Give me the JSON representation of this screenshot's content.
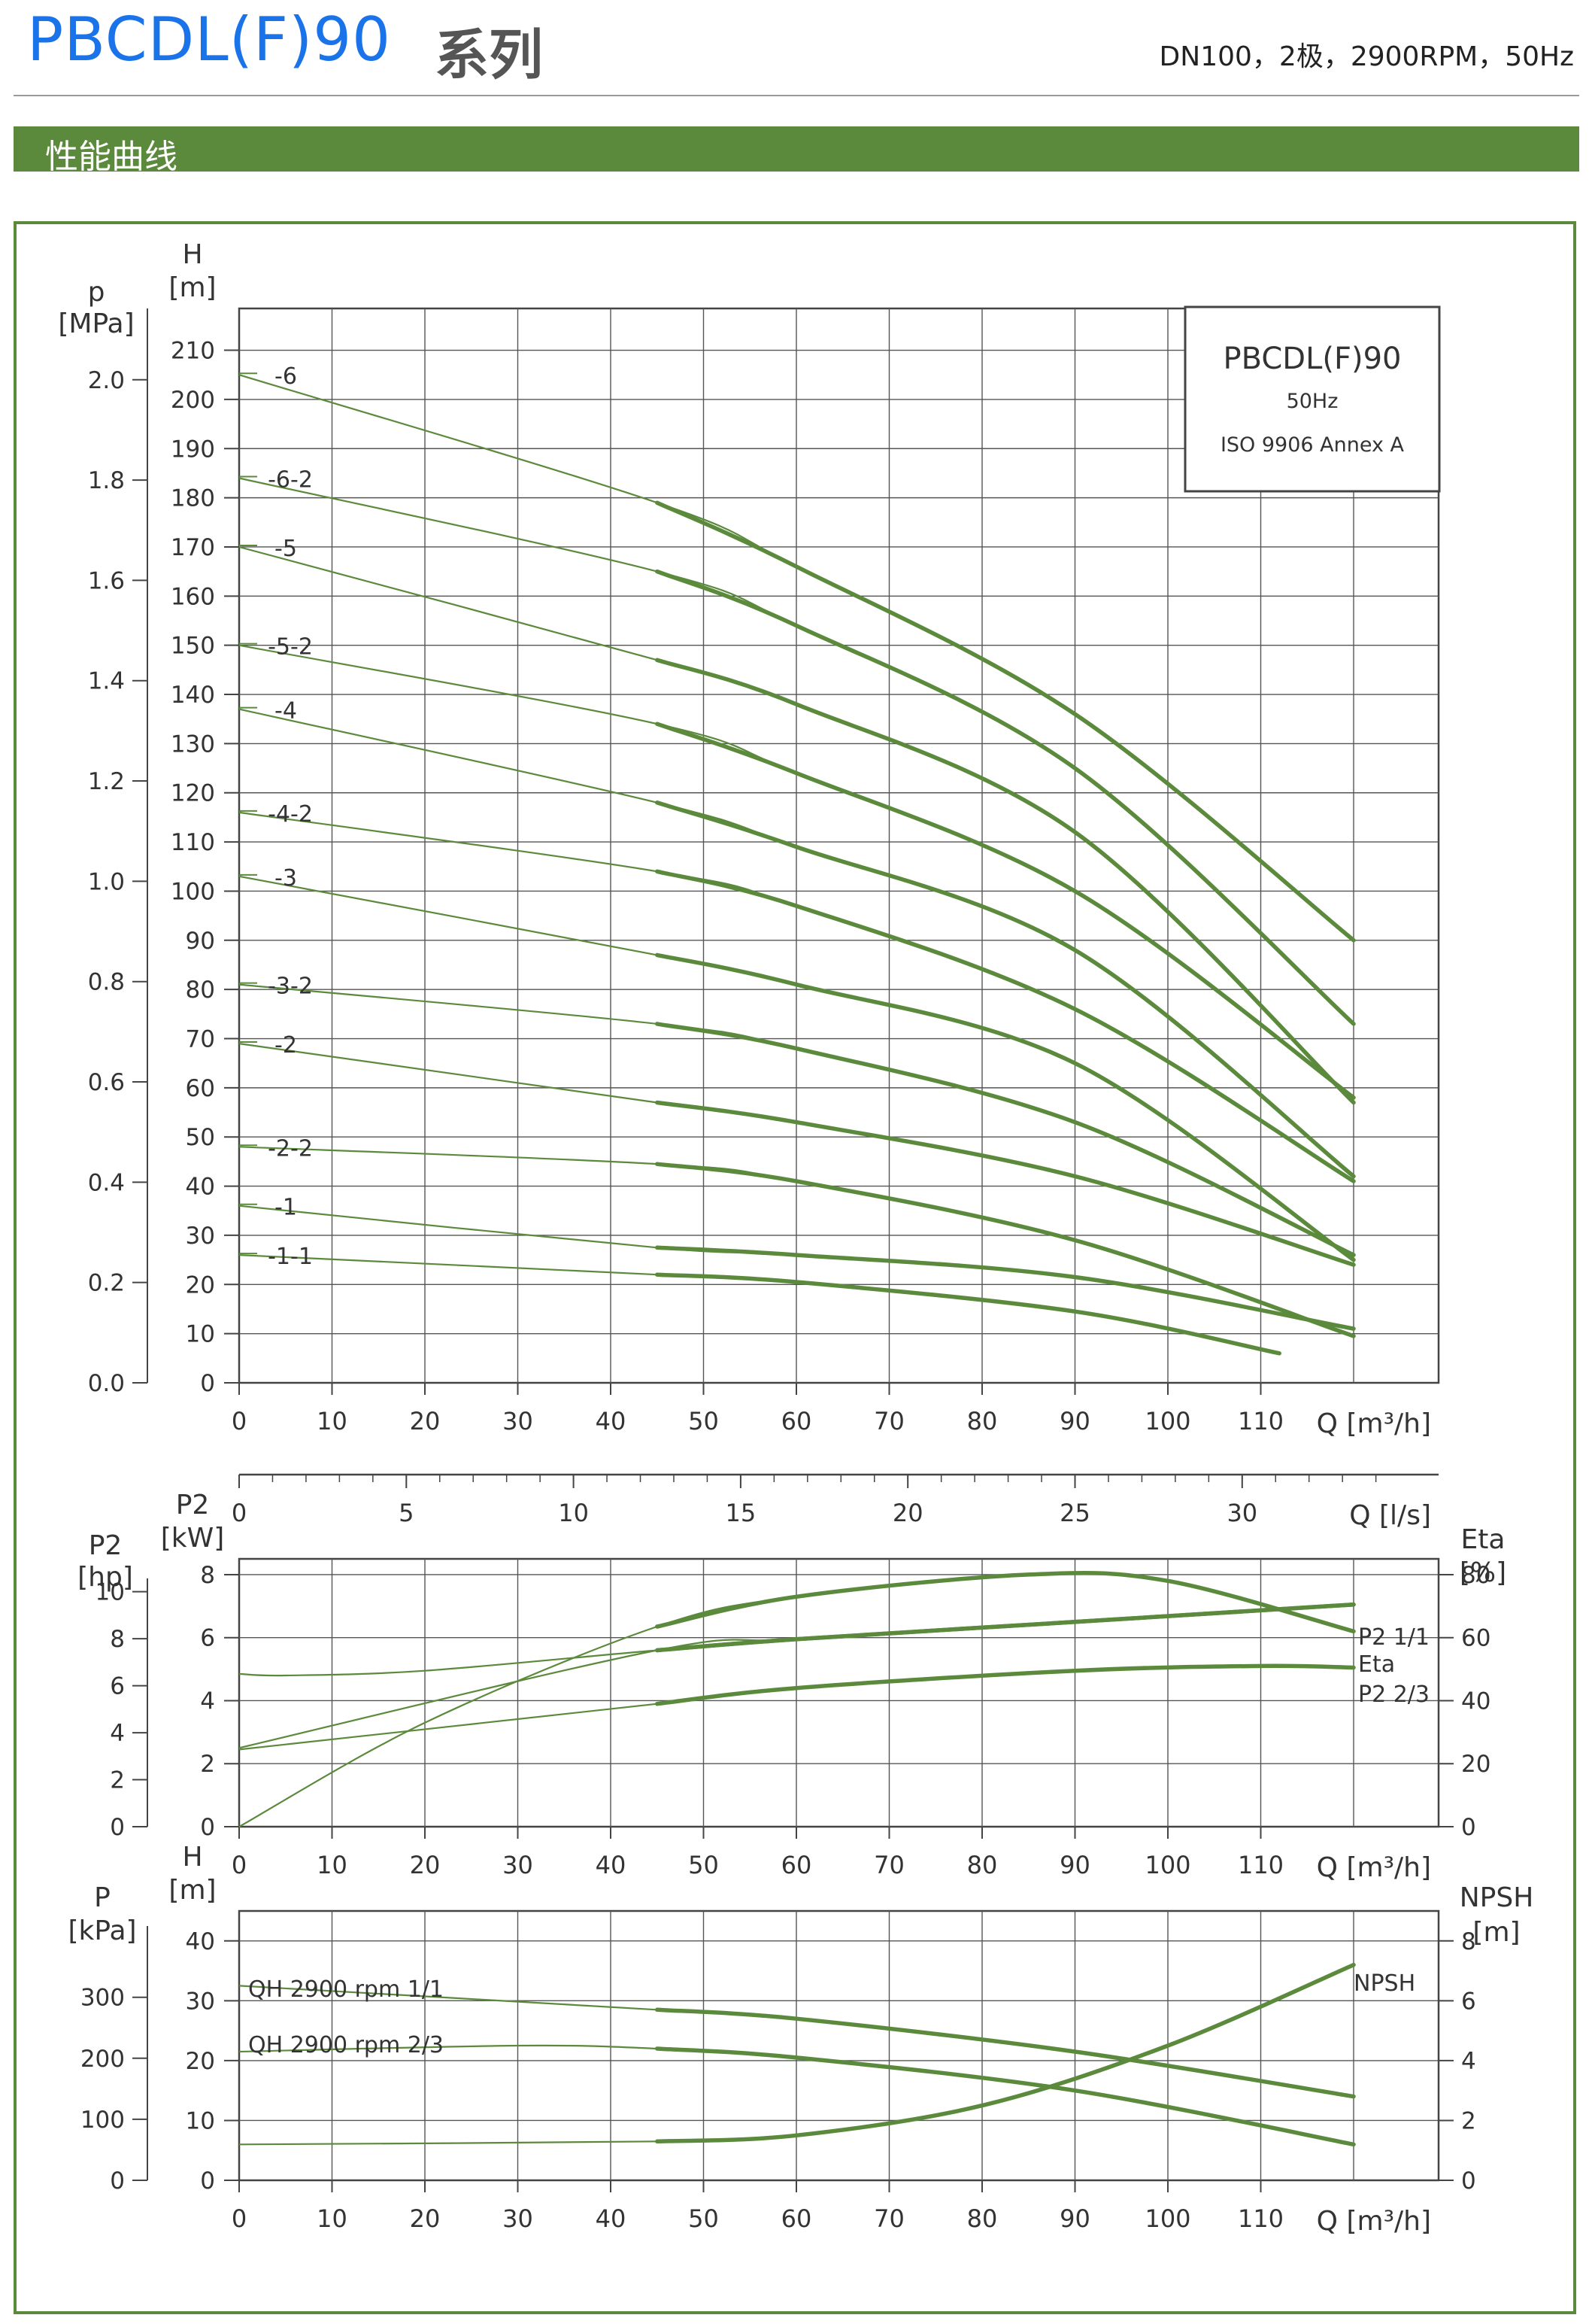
{
  "header": {
    "model": "PBCDL(F)90",
    "series": "系列",
    "spec": "DN100，2极，2900RPM，50Hz"
  },
  "section_title": "性能曲线",
  "colors": {
    "curve": "#5b8a3c",
    "accent": "#1a73e8",
    "grid": "#555555",
    "section": "#5b8a3c"
  },
  "legend_box": {
    "line1": "PBCDL(F)90",
    "line2": "50Hz",
    "line3": "ISO 9906 Annex A"
  },
  "chart_data": [
    {
      "type": "line",
      "xlabel": "Q [m³/h]",
      "xlim": [
        0,
        130
      ],
      "x_ticks": [
        0,
        10,
        20,
        30,
        40,
        50,
        60,
        70,
        80,
        90,
        100,
        110
      ],
      "ylabel": "H",
      "ylabel_unit": "[m]",
      "ylim": [
        0,
        210
      ],
      "y_ticks": [
        0,
        10,
        20,
        30,
        40,
        50,
        60,
        70,
        80,
        90,
        100,
        110,
        120,
        130,
        140,
        150,
        160,
        170,
        180,
        190,
        200,
        210
      ],
      "y2label": "p",
      "y2label_unit": "[MPa]",
      "y2_ticks": [
        "0.0",
        "0.2",
        "0.4",
        "0.6",
        "0.8",
        "1.0",
        "1.2",
        "1.4",
        "1.6",
        "1.8",
        "2.0"
      ],
      "grid": true,
      "secondary_axis": {
        "label": "Q [l/s]",
        "ticks": [
          0,
          5,
          10,
          15,
          20,
          25,
          30
        ]
      },
      "operating_range": [
        45,
        120
      ],
      "series": [
        {
          "name": "-6",
          "x": [
            0,
            45,
            60,
            90,
            120
          ],
          "y": [
            205,
            179,
            166,
            136,
            90
          ]
        },
        {
          "name": "-6-2",
          "x": [
            0,
            45,
            60,
            90,
            120
          ],
          "y": [
            184,
            165,
            154,
            125,
            73
          ]
        },
        {
          "name": "-5",
          "x": [
            0,
            45,
            60,
            90,
            120
          ],
          "y": [
            170,
            147,
            138,
            112,
            57
          ]
        },
        {
          "name": "-5-2",
          "x": [
            0,
            45,
            60,
            90,
            120
          ],
          "y": [
            150,
            134,
            124,
            100,
            58
          ]
        },
        {
          "name": "-4",
          "x": [
            0,
            45,
            60,
            90,
            120
          ],
          "y": [
            137,
            118,
            109,
            88,
            42
          ]
        },
        {
          "name": "-4-2",
          "x": [
            0,
            45,
            60,
            90,
            120
          ],
          "y": [
            116,
            104,
            97,
            76,
            41
          ]
        },
        {
          "name": "-3",
          "x": [
            0,
            45,
            60,
            90,
            120
          ],
          "y": [
            103,
            87,
            81,
            65,
            25
          ]
        },
        {
          "name": "-3-2",
          "x": [
            0,
            45,
            60,
            90,
            120
          ],
          "y": [
            81,
            73,
            68,
            53,
            26
          ]
        },
        {
          "name": "-2",
          "x": [
            0,
            45,
            60,
            90,
            120
          ],
          "y": [
            69,
            57,
            53,
            42,
            24
          ]
        },
        {
          "name": "-2-2",
          "x": [
            0,
            45,
            60,
            90,
            120
          ],
          "y": [
            48,
            44.5,
            41,
            29,
            9.5
          ]
        },
        {
          "name": "-1",
          "x": [
            0,
            45,
            60,
            90,
            120
          ],
          "y": [
            36,
            27.5,
            26,
            21.5,
            11
          ]
        },
        {
          "name": "-1-1",
          "x": [
            0,
            45,
            60,
            90,
            112
          ],
          "y": [
            26,
            22,
            20.5,
            14.5,
            6
          ]
        }
      ]
    },
    {
      "type": "line",
      "xlabel": "Q [m³/h]",
      "xlim": [
        0,
        130
      ],
      "x_ticks": [
        0,
        10,
        20,
        30,
        40,
        50,
        60,
        70,
        80,
        90,
        100,
        110
      ],
      "ylabel": "P2",
      "ylabel_unit": "[kW]",
      "ylim": [
        0,
        8.5
      ],
      "y_ticks": [
        0,
        2,
        4,
        6,
        8
      ],
      "y_hp_label": "P2",
      "y_hp_unit": "[hp]",
      "y_hp_ticks": [
        0,
        2,
        4,
        6,
        8,
        10
      ],
      "y_right_label": "Eta",
      "y_right_unit": "[%]",
      "y_right_ticks": [
        0,
        20,
        40,
        60,
        80
      ],
      "grid": true,
      "series": [
        {
          "name": "P2 1/1",
          "x": [
            0,
            45,
            60,
            90,
            120
          ],
          "y": [
            2.5,
            5.6,
            5.95,
            6.5,
            7.05
          ]
        },
        {
          "name": "Eta",
          "x": [
            0,
            20,
            45,
            60,
            85,
            100,
            120
          ],
          "y_percent": [
            0,
            33,
            63.5,
            73,
            80,
            78,
            62
          ]
        },
        {
          "name": "P2 2/3",
          "x": [
            0,
            5,
            20,
            45,
            60,
            90,
            120
          ],
          "y": [
            4.85,
            4.8,
            4.95,
            5.6,
            5.95,
            6.5,
            7.05
          ]
        },
        {
          "name": "P2 2/3",
          "x": [
            0,
            45,
            60,
            90,
            110,
            120
          ],
          "y": [
            2.45,
            3.9,
            4.4,
            4.95,
            5.1,
            5.05
          ]
        }
      ]
    },
    {
      "type": "line",
      "xlabel": "Q [m³/h]",
      "xlim": [
        0,
        130
      ],
      "x_ticks": [
        0,
        10,
        20,
        30,
        40,
        50,
        60,
        70,
        80,
        90,
        100,
        110
      ],
      "ylabel": "H",
      "ylabel_unit": "[m]",
      "ylim": [
        0,
        45
      ],
      "y_ticks": [
        0,
        10,
        20,
        30,
        40
      ],
      "y_kpa_label": "P",
      "y_kpa_unit": "[kPa]",
      "y_kpa_ticks": [
        0,
        100,
        200,
        300
      ],
      "y_right_label": "NPSH",
      "y_right_unit": "[m]",
      "y_right_ticks": [
        0,
        2,
        4,
        6,
        8
      ],
      "grid": true,
      "series": [
        {
          "name": "QH 2900 rpm 1/1",
          "x": [
            0,
            45,
            60,
            90,
            120
          ],
          "y": [
            32.5,
            28.5,
            27,
            21.5,
            14
          ]
        },
        {
          "name": "QH 2900 rpm 2/3",
          "x": [
            0,
            30,
            45,
            60,
            90,
            120
          ],
          "y": [
            21.5,
            22.5,
            22,
            20.5,
            15,
            6
          ]
        },
        {
          "name": "NPSH",
          "x": [
            0,
            45,
            60,
            80,
            100,
            120
          ],
          "y_m": [
            1.2,
            1.3,
            1.5,
            2.5,
            4.5,
            7.2
          ]
        }
      ]
    }
  ]
}
